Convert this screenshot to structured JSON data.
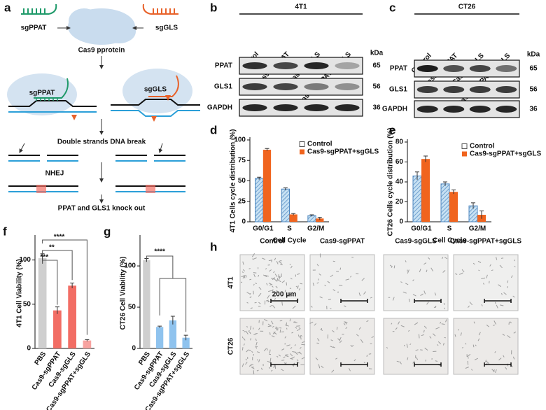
{
  "figure": {
    "a": {
      "label": "a",
      "guide_left": "sgPPAT",
      "guide_right": "sgGLS",
      "protein": "Cas9 pprotein",
      "complex_left": "sgPPAT",
      "complex_right": "sgGLS",
      "break": "Double strands DNA break",
      "repair": "NHEJ",
      "result": "PPAT and GLS1 knock out"
    },
    "b": {
      "label": "b",
      "title": "4T1",
      "lanes": [
        "Control",
        "Cas9-sgPPAT",
        "Cas9-sgGLS",
        "Cas9-sgPPAT+sgGLS"
      ],
      "rows": [
        "PPAT",
        "GLS1",
        "GAPDH"
      ],
      "kda_label": "kDa",
      "kda": [
        65,
        56,
        36
      ]
    },
    "c": {
      "label": "c",
      "title": "CT26",
      "lanes": [
        "Control",
        "Cas9-sgPPAT",
        "Cas9-sgGLS",
        "Cas9-sgPPAT+sgGLS"
      ],
      "rows": [
        "PPAT",
        "GLS1",
        "GAPDH"
      ],
      "kda_label": "kDa",
      "kda": [
        65,
        56,
        36
      ]
    },
    "h": {
      "label": "h",
      "columns": [
        "Control",
        "Cas9-sgPPAT",
        "Cas9-sgGLS",
        "Cas9-sgPPAT+sgGLS"
      ],
      "rows": [
        "4T1",
        "CT26"
      ],
      "scale": "200 μm"
    }
  },
  "chart_data": [
    {
      "panel": "d",
      "type": "bar",
      "categories": [
        "G0/G1",
        "S",
        "G2/M"
      ],
      "series": [
        {
          "name": "Control",
          "color": "#a9cfe8",
          "pattern": "hatch",
          "values": [
            53,
            40,
            7.5
          ],
          "errors": [
            1.5,
            1.5,
            1
          ]
        },
        {
          "name": "Cas9-sgPPAT+sgGLS",
          "color": "#f0641e",
          "values": [
            88,
            9,
            4
          ],
          "errors": [
            1.5,
            1,
            1.5
          ]
        }
      ],
      "ylabel": "4T1 Cells cycle distribution (%)",
      "xlabel": "Cell Cycle",
      "ylim": [
        0,
        100
      ],
      "yticks": [
        0,
        25,
        50,
        75,
        100
      ],
      "legend": "upper right"
    },
    {
      "panel": "e",
      "type": "bar",
      "categories": [
        "G0/G1",
        "S",
        "G2/M"
      ],
      "series": [
        {
          "name": "Control",
          "color": "#a9cfe8",
          "pattern": "hatch",
          "values": [
            46,
            38,
            16
          ],
          "errors": [
            4,
            2,
            3
          ]
        },
        {
          "name": "Cas9-sgPPAT+sgGLS",
          "color": "#f0641e",
          "values": [
            63,
            30,
            7
          ],
          "errors": [
            3,
            2,
            4
          ]
        }
      ],
      "ylabel": "CT26 Cells cycle distribution (%)",
      "xlabel": "Cell Cycle",
      "ylim": [
        0,
        80
      ],
      "yticks": [
        0,
        20,
        40,
        60,
        80
      ],
      "legend": "upper right"
    },
    {
      "panel": "f",
      "type": "bar",
      "categories": [
        "PBS",
        "Cas9-sgPPAT",
        "Cas9-sgGLS",
        "Cas9-sgPPAT+sgGLS"
      ],
      "values": [
        102,
        43,
        71,
        9
      ],
      "errors": [
        5,
        4,
        3,
        1
      ],
      "colors": [
        "#cfcfcf",
        "#f26d64",
        "#f26d64",
        "#f7a3a0"
      ],
      "ylabel": "4T1 Cell Viability (%)",
      "ylim": [
        0,
        125
      ],
      "yticks": [
        0,
        50,
        100
      ],
      "annotations": [
        "***",
        "**",
        "****"
      ]
    },
    {
      "panel": "g",
      "type": "bar",
      "categories": [
        "PBS",
        "Cas9-sgPPAT",
        "Cas9-sgGLS",
        "Cas9-sgPPAT+sgGLS"
      ],
      "values": [
        107,
        26,
        34,
        13
      ],
      "errors": [
        2,
        1,
        5,
        3
      ],
      "colors": [
        "#cfcfcf",
        "#8fc3ee",
        "#8fc3ee",
        "#8fc3ee"
      ],
      "ylabel": "CT26 Cell Viability (%)",
      "ylim": [
        0,
        134
      ],
      "yticks": [
        0,
        50,
        100
      ],
      "annotations": [
        "****"
      ]
    }
  ]
}
